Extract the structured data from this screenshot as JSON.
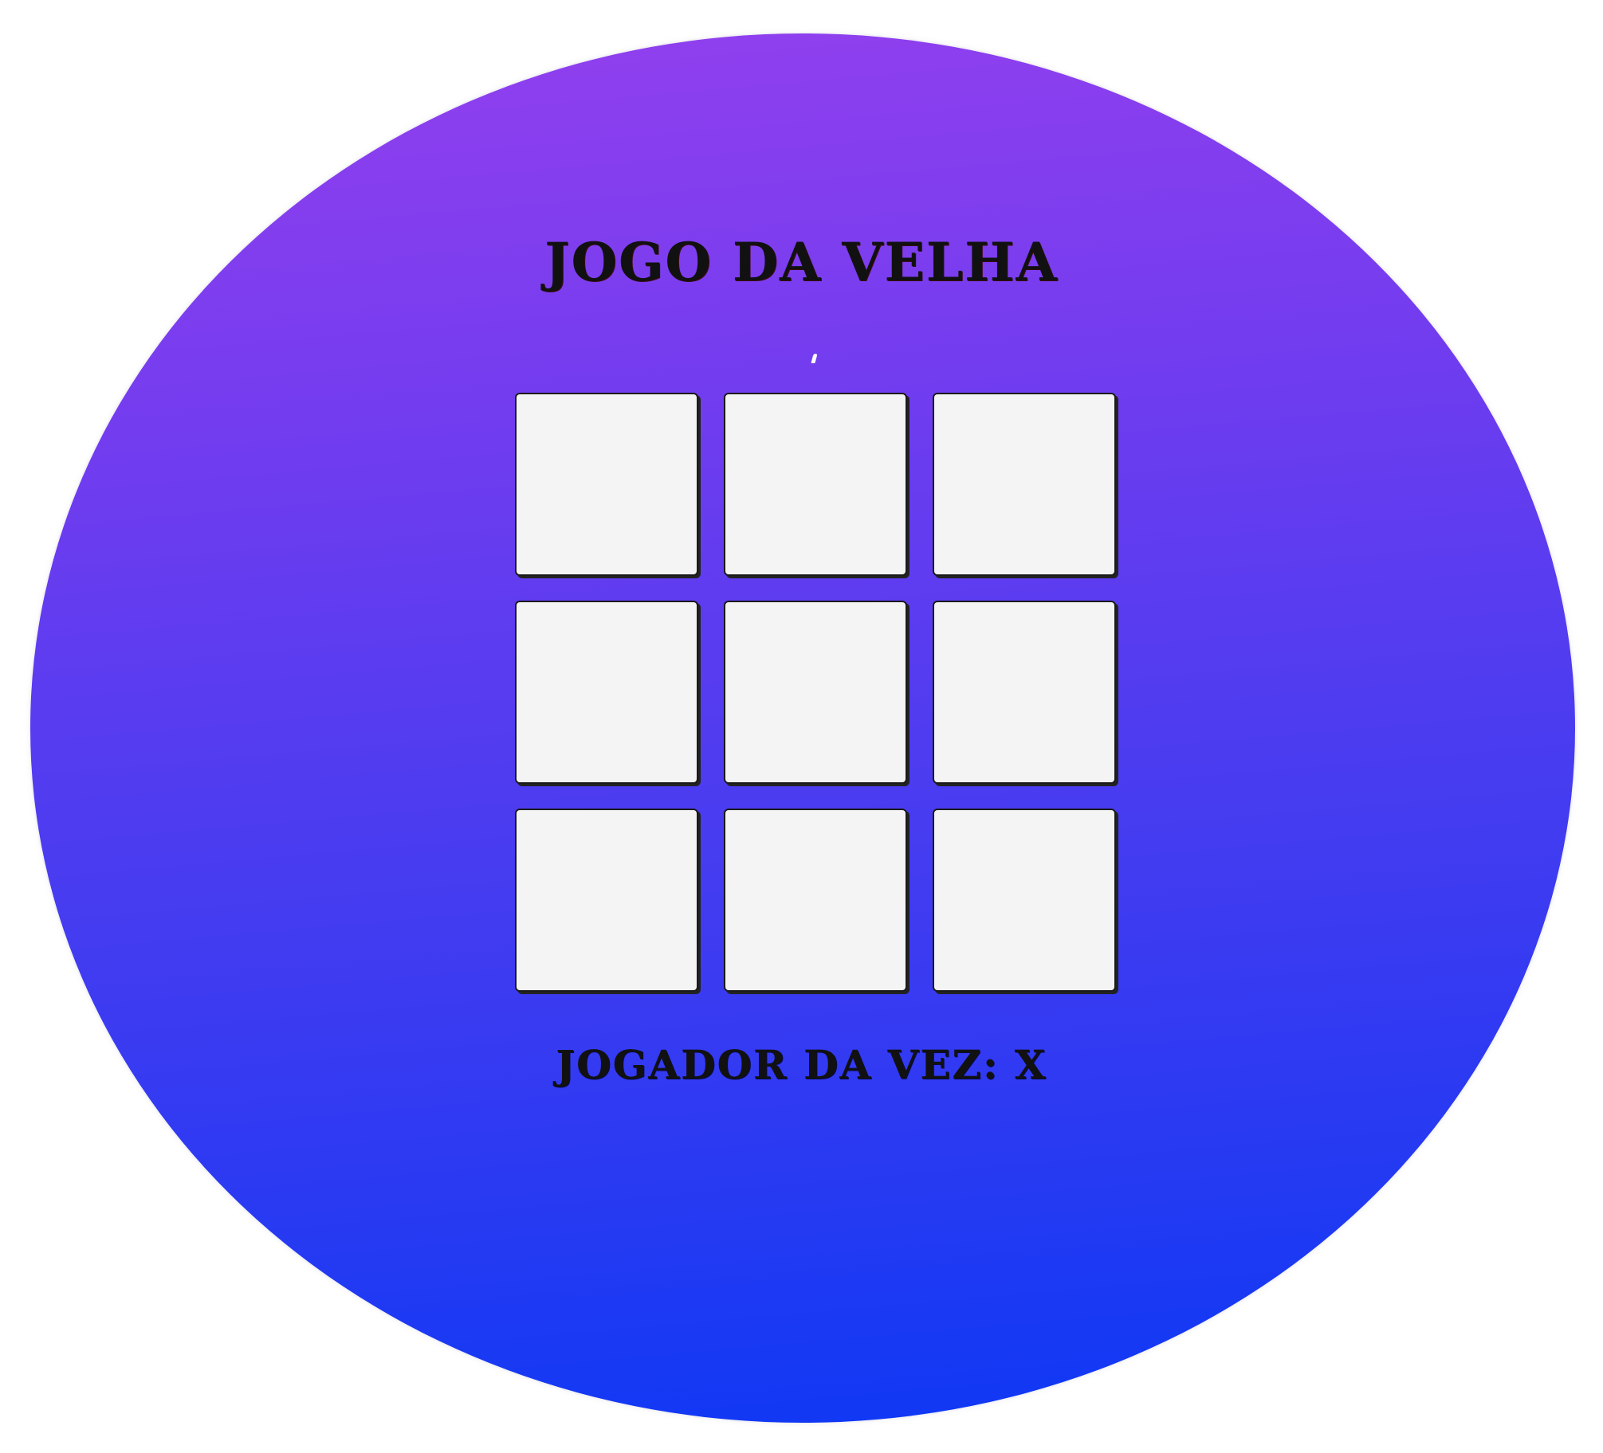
{
  "game": {
    "title": "JOGO DA VELHA",
    "status_label": "JOGADOR DA VEZ: X",
    "current_player": "X",
    "board": [
      "",
      "",
      "",
      "",
      "",
      "",
      "",
      "",
      ""
    ]
  },
  "colors": {
    "gradient_top": "#9440ee",
    "gradient_bottom": "#0b38f4",
    "cell_fill": "#f4f4f4",
    "text": "#111111",
    "page_background": "#ffffff"
  }
}
